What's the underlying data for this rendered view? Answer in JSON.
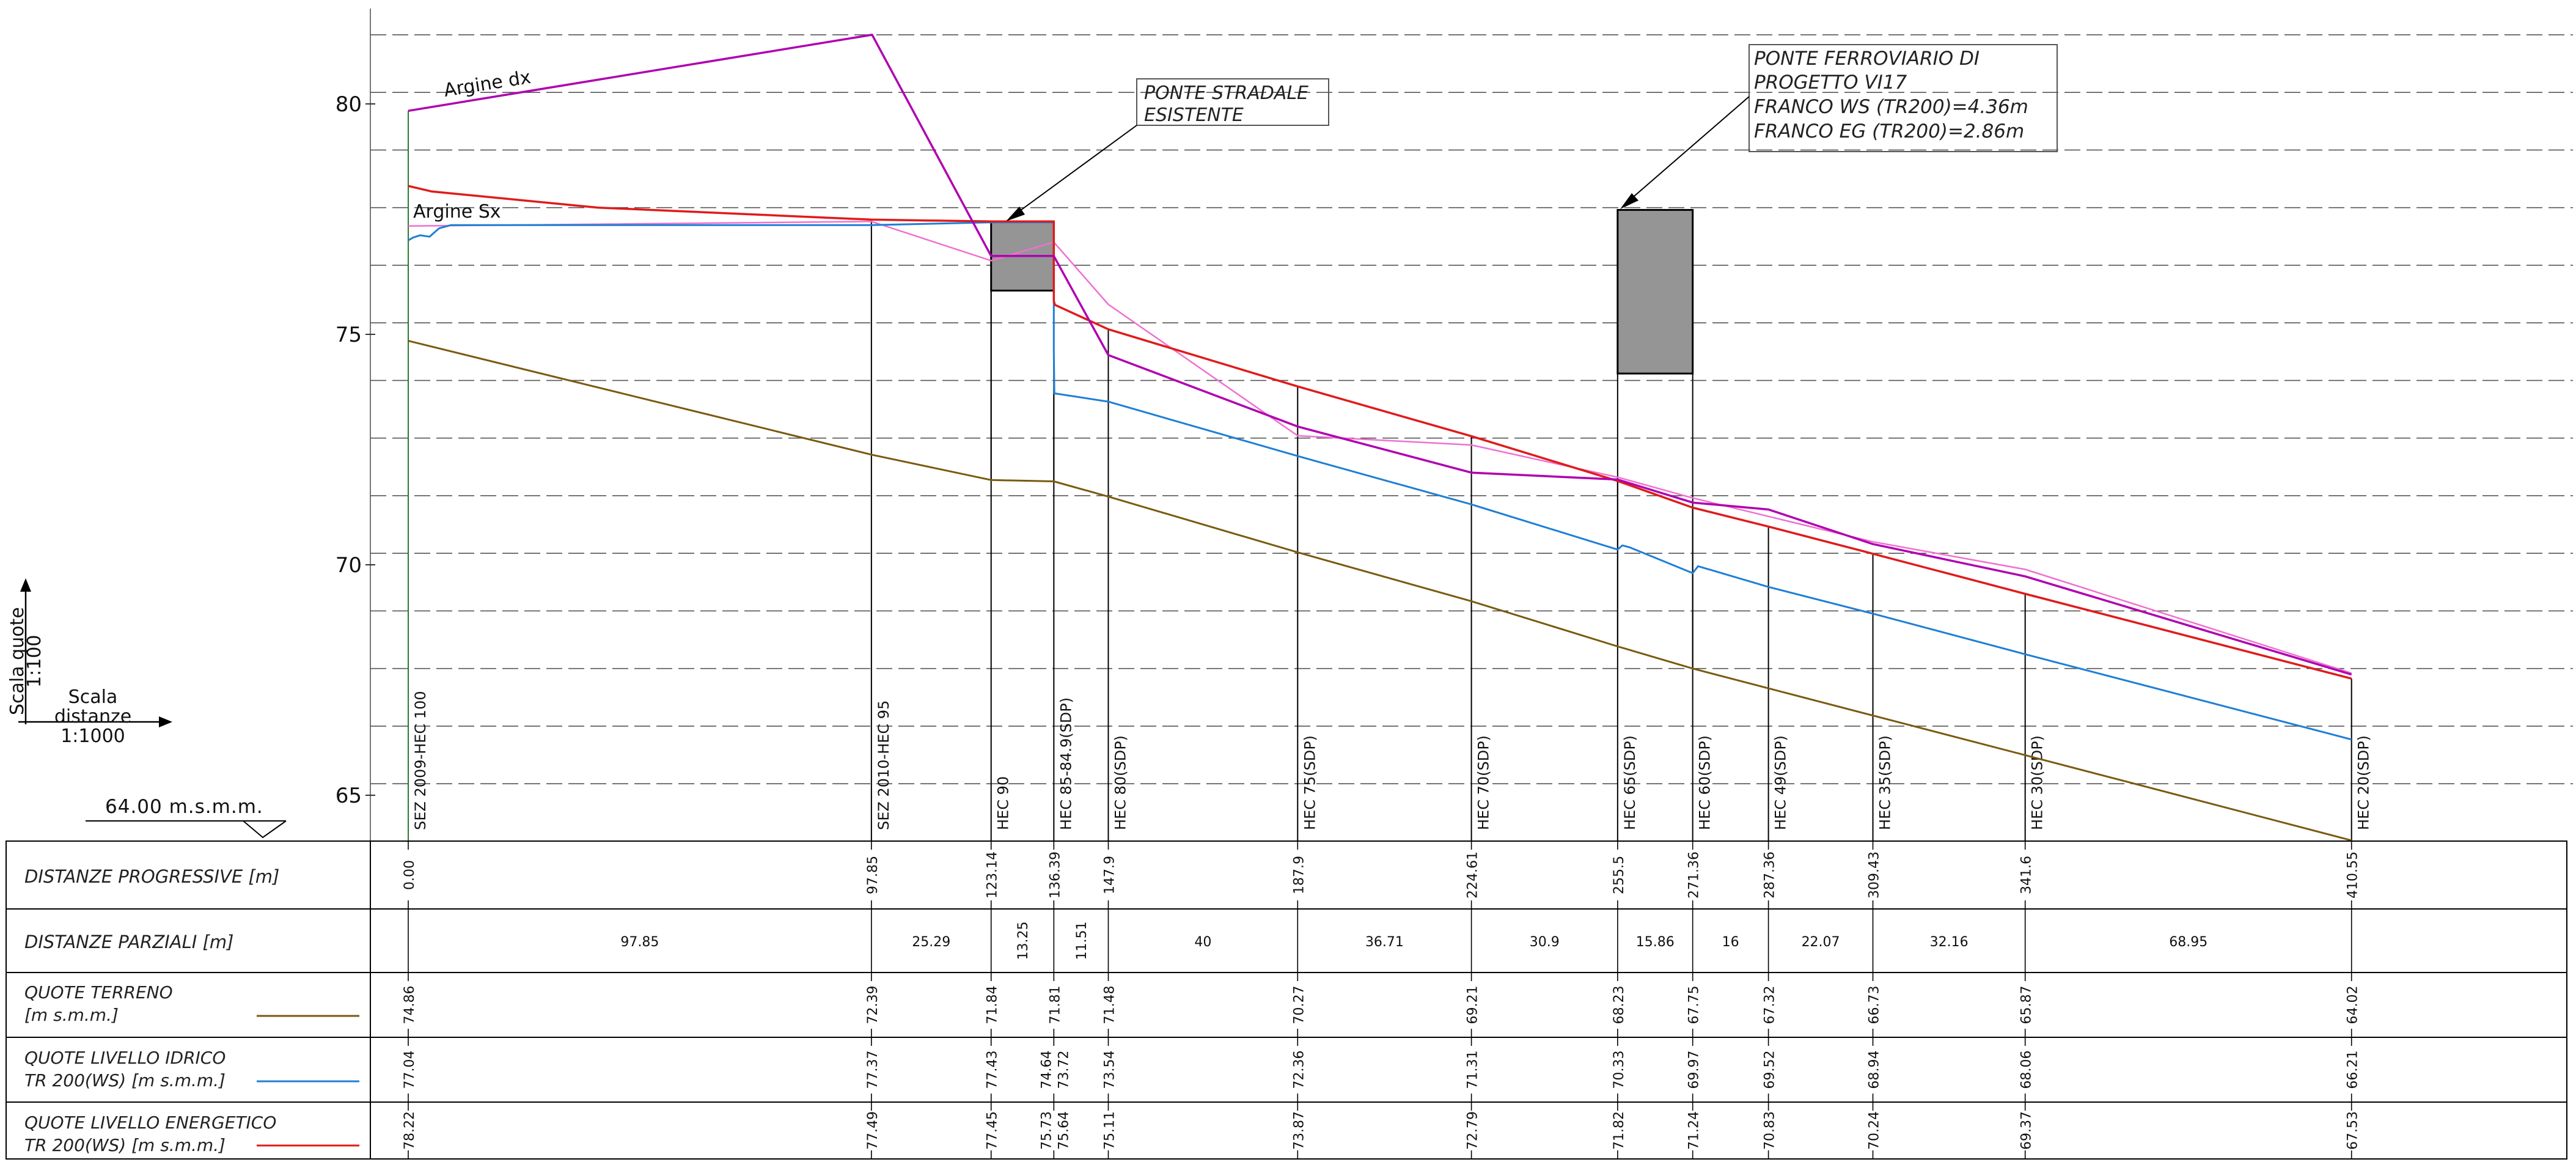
{
  "scale_legend": {
    "vertical_label": "Scala quote",
    "vertical_value": "1:100",
    "horizontal_label": "Scala distanze",
    "horizontal_value": "1:1000"
  },
  "datum": "64.00 m.s.m.m.",
  "row_labels": {
    "progressive": "DISTANZE PROGRESSIVE [m]",
    "partial": "DISTANZE PARZIALI [m]",
    "ground": [
      "QUOTE TERRENO",
      "[m s.m.m.]"
    ],
    "water": [
      "QUOTE LIVELLO IDRICO",
      "TR 200(WS) [m s.m.m.]"
    ],
    "energy": [
      "QUOTE LIVELLO ENERGETICO",
      "TR 200(WS) [m s.m.m.]"
    ]
  },
  "annotations": {
    "left_levee": "Argine dx",
    "right_levee": "Argine Sx",
    "existing_bridge": [
      "PONTE STRADALE",
      "ESISTENTE"
    ],
    "railway_bridge": [
      "PONTE FERROVIARIO DI",
      "PROGETTO VI17",
      "FRANCO WS (TR200)=4.36m",
      "FRANCO EG (TR200)=2.86m"
    ]
  },
  "colors": {
    "ground": "#7a5a10",
    "water": "#1f7fd6",
    "energy": "#e01b1b",
    "argine_dx": "#b000b0",
    "argine_sx": "#f070d0",
    "bridge": "#959595"
  },
  "chart_data": {
    "type": "line",
    "xlabel": "DISTANZE PROGRESSIVE [m]",
    "ylabel": "",
    "yticks": [
      65,
      70,
      75,
      80
    ],
    "ylim": [
      64,
      82
    ],
    "sections": [
      {
        "name": "SEZ 2009-HEC 100",
        "x": 0.0,
        "x_label": "0.00",
        "ground": "74.86",
        "water": "77.04",
        "energy": "78.22"
      },
      {
        "name": "SEZ 2010-HEC 95",
        "x": 97.85,
        "x_label": "97.85",
        "ground": "72.39",
        "water": "77.37",
        "energy": "77.49"
      },
      {
        "name": "HEC 90",
        "x": 123.14,
        "x_label": "123.14",
        "ground": "71.84",
        "water": "77.43",
        "energy": "77.45"
      },
      {
        "name": "HEC 85-84.9(SDP)",
        "x": 136.39,
        "x_label": "136.39",
        "ground": "71.81",
        "water": "74.64 73.72",
        "energy": "75.73 75.64"
      },
      {
        "name": "HEC 80(SDP)",
        "x": 147.9,
        "x_label": "147.9",
        "ground": "71.48",
        "water": "73.54",
        "energy": "75.11"
      },
      {
        "name": "HEC 75(SDP)",
        "x": 187.9,
        "x_label": "187.9",
        "ground": "70.27",
        "water": "72.36",
        "energy": "73.87"
      },
      {
        "name": "HEC 70(SDP)",
        "x": 224.61,
        "x_label": "224.61",
        "ground": "69.21",
        "water": "71.31",
        "energy": "72.79"
      },
      {
        "name": "HEC 65(SDP)",
        "x": 255.5,
        "x_label": "255.5",
        "ground": "68.23",
        "water": "70.33",
        "energy": "71.82"
      },
      {
        "name": "HEC 60(SDP)",
        "x": 271.36,
        "x_label": "271.36",
        "ground": "67.75",
        "water": "69.97",
        "energy": "71.24"
      },
      {
        "name": "HEC 49(SDP)",
        "x": 287.36,
        "x_label": "287.36",
        "ground": "67.32",
        "water": "69.52",
        "energy": "70.83"
      },
      {
        "name": "HEC 35(SDP)",
        "x": 309.43,
        "x_label": "309.43",
        "ground": "66.73",
        "water": "68.94",
        "energy": "70.24"
      },
      {
        "name": "HEC 30(SDP)",
        "x": 341.6,
        "x_label": "341.6",
        "ground": "65.87",
        "water": "68.06",
        "energy": "69.37"
      },
      {
        "name": "HEC 20(SDP)",
        "x": 410.55,
        "x_label": "410.55",
        "ground": "64.02",
        "water": "66.21",
        "energy": "67.53"
      }
    ],
    "partials": [
      "97.85",
      "25.29",
      "13.25",
      "11.51",
      "40",
      "36.71",
      "30.9",
      "15.86",
      "16",
      "22.07",
      "32.16",
      "68.95"
    ],
    "series": [
      {
        "name": "QUOTE TERRENO",
        "key": "ground",
        "points": [
          [
            0,
            74.86
          ],
          [
            97.85,
            72.39
          ],
          [
            123.14,
            71.84
          ],
          [
            136.39,
            71.81
          ],
          [
            147.9,
            71.48
          ],
          [
            187.9,
            70.27
          ],
          [
            224.61,
            69.21
          ],
          [
            255.5,
            68.23
          ],
          [
            271.36,
            67.75
          ],
          [
            287.36,
            67.32
          ],
          [
            309.43,
            66.73
          ],
          [
            341.6,
            65.87
          ],
          [
            410.55,
            64.02
          ]
        ]
      },
      {
        "name": "QUOTE LIVELLO IDRICO TR 200(WS)",
        "key": "water",
        "points": [
          [
            0,
            77.04
          ],
          [
            1,
            77.1
          ],
          [
            2.5,
            77.15
          ],
          [
            4.5,
            77.12
          ],
          [
            6.5,
            77.3
          ],
          [
            9,
            77.37
          ],
          [
            97.85,
            77.37
          ],
          [
            123.14,
            77.43
          ],
          [
            136.39,
            77.43
          ],
          [
            136.39,
            74.64
          ],
          [
            136.5,
            73.72
          ],
          [
            147.9,
            73.54
          ],
          [
            187.9,
            72.36
          ],
          [
            224.61,
            71.31
          ],
          [
            255.5,
            70.33
          ],
          [
            256.5,
            70.42
          ],
          [
            258,
            70.38
          ],
          [
            271.36,
            69.82
          ],
          [
            272.5,
            69.97
          ],
          [
            287.36,
            69.52
          ],
          [
            309.43,
            68.94
          ],
          [
            341.6,
            68.06
          ],
          [
            410.55,
            66.21
          ]
        ]
      },
      {
        "name": "QUOTE LIVELLO ENERGETICO TR 200(WS)",
        "key": "energy",
        "points": [
          [
            0,
            78.22
          ],
          [
            5,
            78.1
          ],
          [
            40,
            77.75
          ],
          [
            97.85,
            77.49
          ],
          [
            123.14,
            77.45
          ],
          [
            136.39,
            77.45
          ],
          [
            136.39,
            75.73
          ],
          [
            136.6,
            75.64
          ],
          [
            147.9,
            75.11
          ],
          [
            187.9,
            73.87
          ],
          [
            224.61,
            72.79
          ],
          [
            255.5,
            71.82
          ],
          [
            271.36,
            71.24
          ],
          [
            287.36,
            70.83
          ],
          [
            309.43,
            70.24
          ],
          [
            341.6,
            69.37
          ],
          [
            410.55,
            67.53
          ]
        ]
      },
      {
        "name": "Argine dx",
        "key": "argine_dx",
        "points": [
          [
            0,
            79.85
          ],
          [
            98,
            81.5
          ],
          [
            123.14,
            76.7
          ],
          [
            136.39,
            76.7
          ],
          [
            147.9,
            74.55
          ],
          [
            187.9,
            73.0
          ],
          [
            224.61,
            72.0
          ],
          [
            255.5,
            71.85
          ],
          [
            271.36,
            71.35
          ],
          [
            287.36,
            71.2
          ],
          [
            309.43,
            70.45
          ],
          [
            341.6,
            69.75
          ],
          [
            410.55,
            67.62
          ]
        ]
      },
      {
        "name": "Argine Sx",
        "key": "argine_sx",
        "points": [
          [
            0,
            77.35
          ],
          [
            97.85,
            77.45
          ],
          [
            123.14,
            76.6
          ],
          [
            136.39,
            77.0
          ],
          [
            147.9,
            75.65
          ],
          [
            187.9,
            72.8
          ],
          [
            224.61,
            72.6
          ],
          [
            255.5,
            71.9
          ],
          [
            271.36,
            71.45
          ],
          [
            287.36,
            71.05
          ],
          [
            309.43,
            70.5
          ],
          [
            341.6,
            69.9
          ],
          [
            410.55,
            67.65
          ]
        ]
      }
    ],
    "bridges": [
      {
        "x0": 123.14,
        "x1": 136.39,
        "deck_bottom": 75.95,
        "deck_top": 77.45
      },
      {
        "x0": 255.5,
        "x1": 271.36,
        "deck_bottom": 74.15,
        "deck_top": 77.7
      }
    ]
  }
}
